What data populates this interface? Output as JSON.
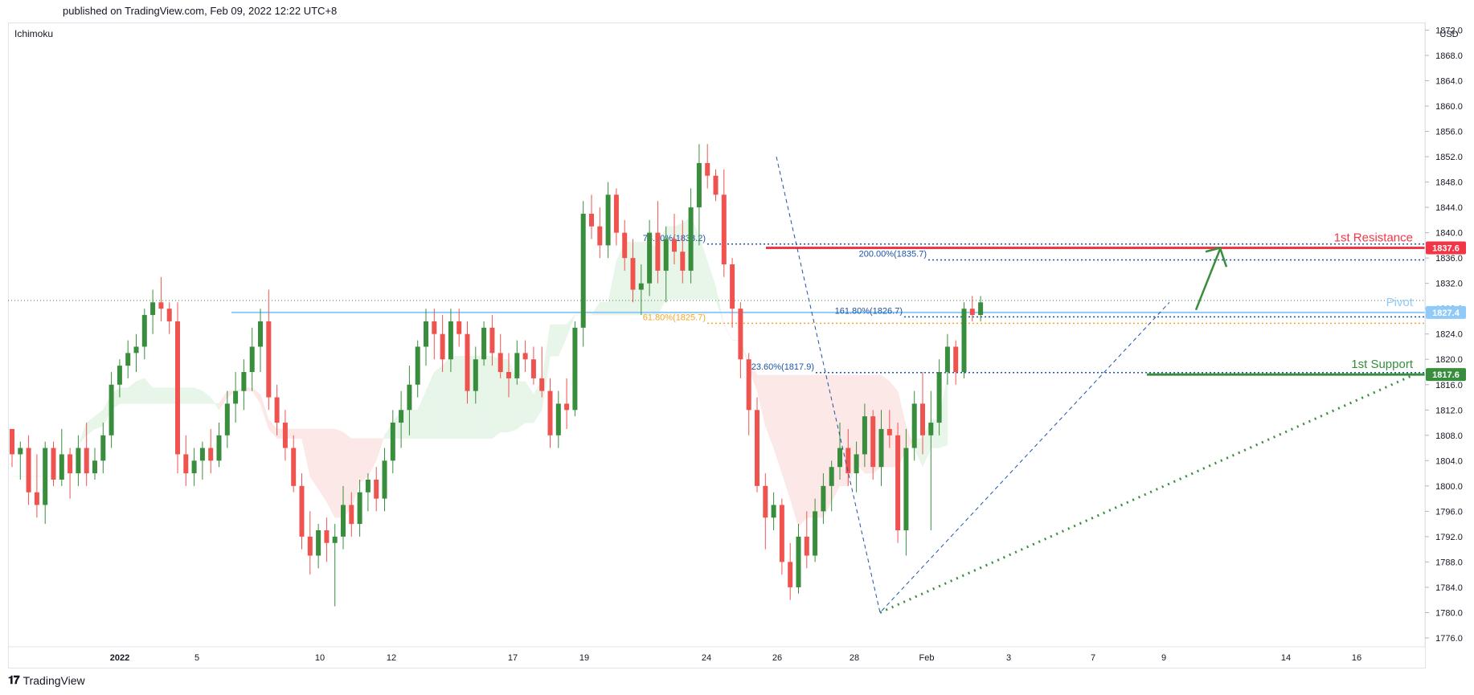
{
  "header": {
    "published": "published on TradingView.com, Feb 09, 2022 12:22 UTC+8"
  },
  "footer": {
    "brand": "TradingView"
  },
  "colors": {
    "up": "#388e3c",
    "down": "#ef5350",
    "pivot": "#90caf9",
    "resistance": "#f23645",
    "support": "#388e3c",
    "fib_blue": "#1e53a5",
    "fib_orange": "#f5a623",
    "cloud_green": "#e8f5e9",
    "cloud_red": "#fde8e8"
  },
  "chart_data": {
    "type": "candlestick",
    "title": "",
    "indicator": "Ichimoku",
    "currency": "USD",
    "ylim": [
      1774.6,
      1873.2
    ],
    "y_ticks": [
      1776.0,
      1780.0,
      1784.0,
      1788.0,
      1792.0,
      1796.0,
      1800.0,
      1804.0,
      1808.0,
      1812.0,
      1816.0,
      1820.0,
      1824.0,
      1828.0,
      1832.0,
      1836.0,
      1840.0,
      1844.0,
      1848.0,
      1852.0,
      1856.0,
      1860.0,
      1864.0,
      1868.0,
      1872.0
    ],
    "x_labels": [
      "2022",
      "5",
      "10",
      "12",
      "17",
      "19",
      "24",
      "26",
      "28",
      "Feb",
      "3",
      "7",
      "9",
      "14",
      "16"
    ],
    "price_badges": [
      {
        "value": "1837.6",
        "kind": "resistance"
      },
      {
        "value": "1827.4",
        "kind": "pivot"
      },
      {
        "value": "1817.6",
        "kind": "support"
      }
    ],
    "levels": {
      "resistance": {
        "label": "1st Resistance",
        "value": 1837.6
      },
      "pivot": {
        "label": "Pivot",
        "value": 1827.4
      },
      "support": {
        "label": "1st Support",
        "value": 1817.6
      }
    },
    "fib_labels": [
      {
        "text": "78.60%(1838.2)",
        "value": 1838.2,
        "color": "blue"
      },
      {
        "text": "200.00%(1835.7)",
        "value": 1835.7,
        "color": "blue"
      },
      {
        "text": "161.80%(1826.7)",
        "value": 1826.7,
        "color": "blue"
      },
      {
        "text": "61.80%(1825.7)",
        "value": 1825.7,
        "color": "orange"
      },
      {
        "text": "23.60%(1817.9)",
        "value": 1817.9,
        "color": "blue"
      }
    ],
    "last_price": 1829.3,
    "candles": [
      [
        1809,
        1809,
        1803,
        1805
      ],
      [
        1805,
        1807,
        1801,
        1806
      ],
      [
        1806,
        1808,
        1797,
        1799
      ],
      [
        1799,
        1805,
        1795,
        1797
      ],
      [
        1797,
        1807,
        1794,
        1806
      ],
      [
        1806,
        1807,
        1800,
        1801
      ],
      [
        1801,
        1809,
        1800,
        1805
      ],
      [
        1805,
        1806,
        1798,
        1802
      ],
      [
        1802,
        1808,
        1800,
        1806
      ],
      [
        1806,
        1810,
        1800,
        1802
      ],
      [
        1802,
        1806,
        1801,
        1804
      ],
      [
        1804,
        1810,
        1802,
        1808
      ],
      [
        1808,
        1818,
        1806,
        1816
      ],
      [
        1816,
        1820,
        1814,
        1819
      ],
      [
        1819,
        1823,
        1817,
        1821
      ],
      [
        1821,
        1824,
        1818,
        1822
      ],
      [
        1822,
        1828,
        1820,
        1827
      ],
      [
        1827,
        1831,
        1824,
        1829
      ],
      [
        1829,
        1833,
        1826,
        1828
      ],
      [
        1828,
        1829,
        1824,
        1826
      ],
      [
        1826,
        1829,
        1802,
        1805
      ],
      [
        1805,
        1808,
        1800,
        1802
      ],
      [
        1802,
        1806,
        1800,
        1804
      ],
      [
        1804,
        1807,
        1801,
        1806
      ],
      [
        1806,
        1809,
        1802,
        1804
      ],
      [
        1804,
        1810,
        1803,
        1808
      ],
      [
        1808,
        1815,
        1806,
        1813
      ],
      [
        1813,
        1818,
        1810,
        1815
      ],
      [
        1815,
        1820,
        1812,
        1818
      ],
      [
        1818,
        1825,
        1815,
        1822
      ],
      [
        1822,
        1828,
        1818,
        1826
      ],
      [
        1826,
        1831,
        1812,
        1814
      ],
      [
        1814,
        1816,
        1808,
        1810
      ],
      [
        1810,
        1812,
        1804,
        1806
      ],
      [
        1806,
        1808,
        1799,
        1800
      ],
      [
        1800,
        1802,
        1790,
        1792
      ],
      [
        1792,
        1796,
        1786,
        1789
      ],
      [
        1789,
        1794,
        1787,
        1793
      ],
      [
        1793,
        1795,
        1788,
        1791
      ],
      [
        1791,
        1794,
        1781,
        1792
      ],
      [
        1792,
        1800,
        1790,
        1797
      ],
      [
        1797,
        1799,
        1792,
        1794
      ],
      [
        1794,
        1801,
        1792,
        1799
      ],
      [
        1799,
        1802,
        1796,
        1801
      ],
      [
        1801,
        1803,
        1796,
        1798
      ],
      [
        1798,
        1806,
        1796,
        1804
      ],
      [
        1804,
        1812,
        1802,
        1810
      ],
      [
        1810,
        1815,
        1806,
        1812
      ],
      [
        1812,
        1819,
        1808,
        1816
      ],
      [
        1816,
        1823,
        1814,
        1822
      ],
      [
        1822,
        1828,
        1819,
        1826
      ],
      [
        1826,
        1828,
        1820,
        1824
      ],
      [
        1824,
        1827,
        1818,
        1820
      ],
      [
        1820,
        1828,
        1818,
        1826
      ],
      [
        1826,
        1828,
        1822,
        1824
      ],
      [
        1824,
        1826,
        1813,
        1815
      ],
      [
        1815,
        1822,
        1813,
        1820
      ],
      [
        1820,
        1826,
        1819,
        1825
      ],
      [
        1825,
        1827,
        1819,
        1821
      ],
      [
        1821,
        1824,
        1817,
        1818
      ],
      [
        1818,
        1821,
        1814,
        1817
      ],
      [
        1817,
        1823,
        1816,
        1821
      ],
      [
        1821,
        1823,
        1818,
        1820
      ],
      [
        1820,
        1822,
        1816,
        1817
      ],
      [
        1817,
        1822,
        1814,
        1815
      ],
      [
        1815,
        1817,
        1806,
        1808
      ],
      [
        1808,
        1815,
        1806,
        1813
      ],
      [
        1813,
        1817,
        1809,
        1812
      ],
      [
        1812,
        1826,
        1811,
        1825
      ],
      [
        1825,
        1845,
        1822,
        1843
      ],
      [
        1843,
        1846,
        1839,
        1841
      ],
      [
        1841,
        1844,
        1836,
        1838
      ],
      [
        1838,
        1848,
        1836,
        1846
      ],
      [
        1846,
        1847,
        1838,
        1840
      ],
      [
        1840,
        1842,
        1834,
        1836
      ],
      [
        1836,
        1839,
        1829,
        1831
      ],
      [
        1831,
        1835,
        1827,
        1832
      ],
      [
        1832,
        1842,
        1830,
        1840
      ],
      [
        1840,
        1845,
        1832,
        1834
      ],
      [
        1834,
        1841,
        1829,
        1839
      ],
      [
        1839,
        1843,
        1835,
        1837
      ],
      [
        1837,
        1842,
        1832,
        1834
      ],
      [
        1834,
        1847,
        1832,
        1844
      ],
      [
        1844,
        1854,
        1838,
        1851
      ],
      [
        1851,
        1854,
        1847,
        1849
      ],
      [
        1849,
        1850,
        1845,
        1846
      ],
      [
        1846,
        1850,
        1833,
        1835
      ],
      [
        1835,
        1836,
        1825,
        1828
      ],
      [
        1828,
        1829,
        1817,
        1820
      ],
      [
        1820,
        1821,
        1808,
        1812
      ],
      [
        1812,
        1814,
        1799,
        1800
      ],
      [
        1800,
        1802,
        1790,
        1795
      ],
      [
        1795,
        1799,
        1793,
        1797
      ],
      [
        1797,
        1798,
        1786,
        1788
      ],
      [
        1788,
        1791,
        1782,
        1784
      ],
      [
        1784,
        1794,
        1783,
        1792
      ],
      [
        1792,
        1796,
        1787,
        1789
      ],
      [
        1789,
        1798,
        1788,
        1796
      ],
      [
        1796,
        1802,
        1794,
        1800
      ],
      [
        1800,
        1804,
        1796,
        1803
      ],
      [
        1803,
        1810,
        1801,
        1806
      ],
      [
        1806,
        1809,
        1800,
        1802
      ],
      [
        1802,
        1807,
        1799,
        1805
      ],
      [
        1805,
        1813,
        1803,
        1811
      ],
      [
        1811,
        1812,
        1801,
        1803
      ],
      [
        1803,
        1812,
        1800,
        1809
      ],
      [
        1809,
        1812,
        1806,
        1808
      ],
      [
        1808,
        1810,
        1791,
        1793
      ],
      [
        1793,
        1809,
        1789,
        1806
      ],
      [
        1806,
        1815,
        1804,
        1813
      ],
      [
        1813,
        1818,
        1805,
        1808
      ],
      [
        1808,
        1815,
        1793,
        1810
      ],
      [
        1810,
        1820,
        1808,
        1818
      ],
      [
        1818,
        1824,
        1816,
        1822
      ],
      [
        1822,
        1823,
        1816,
        1818
      ],
      [
        1818,
        1829,
        1817,
        1828
      ],
      [
        1828,
        1830,
        1826,
        1827
      ],
      [
        1827,
        1830,
        1826,
        1829
      ]
    ],
    "annotations": [
      "Pivot",
      "1st Resistance",
      "1st Support"
    ]
  }
}
